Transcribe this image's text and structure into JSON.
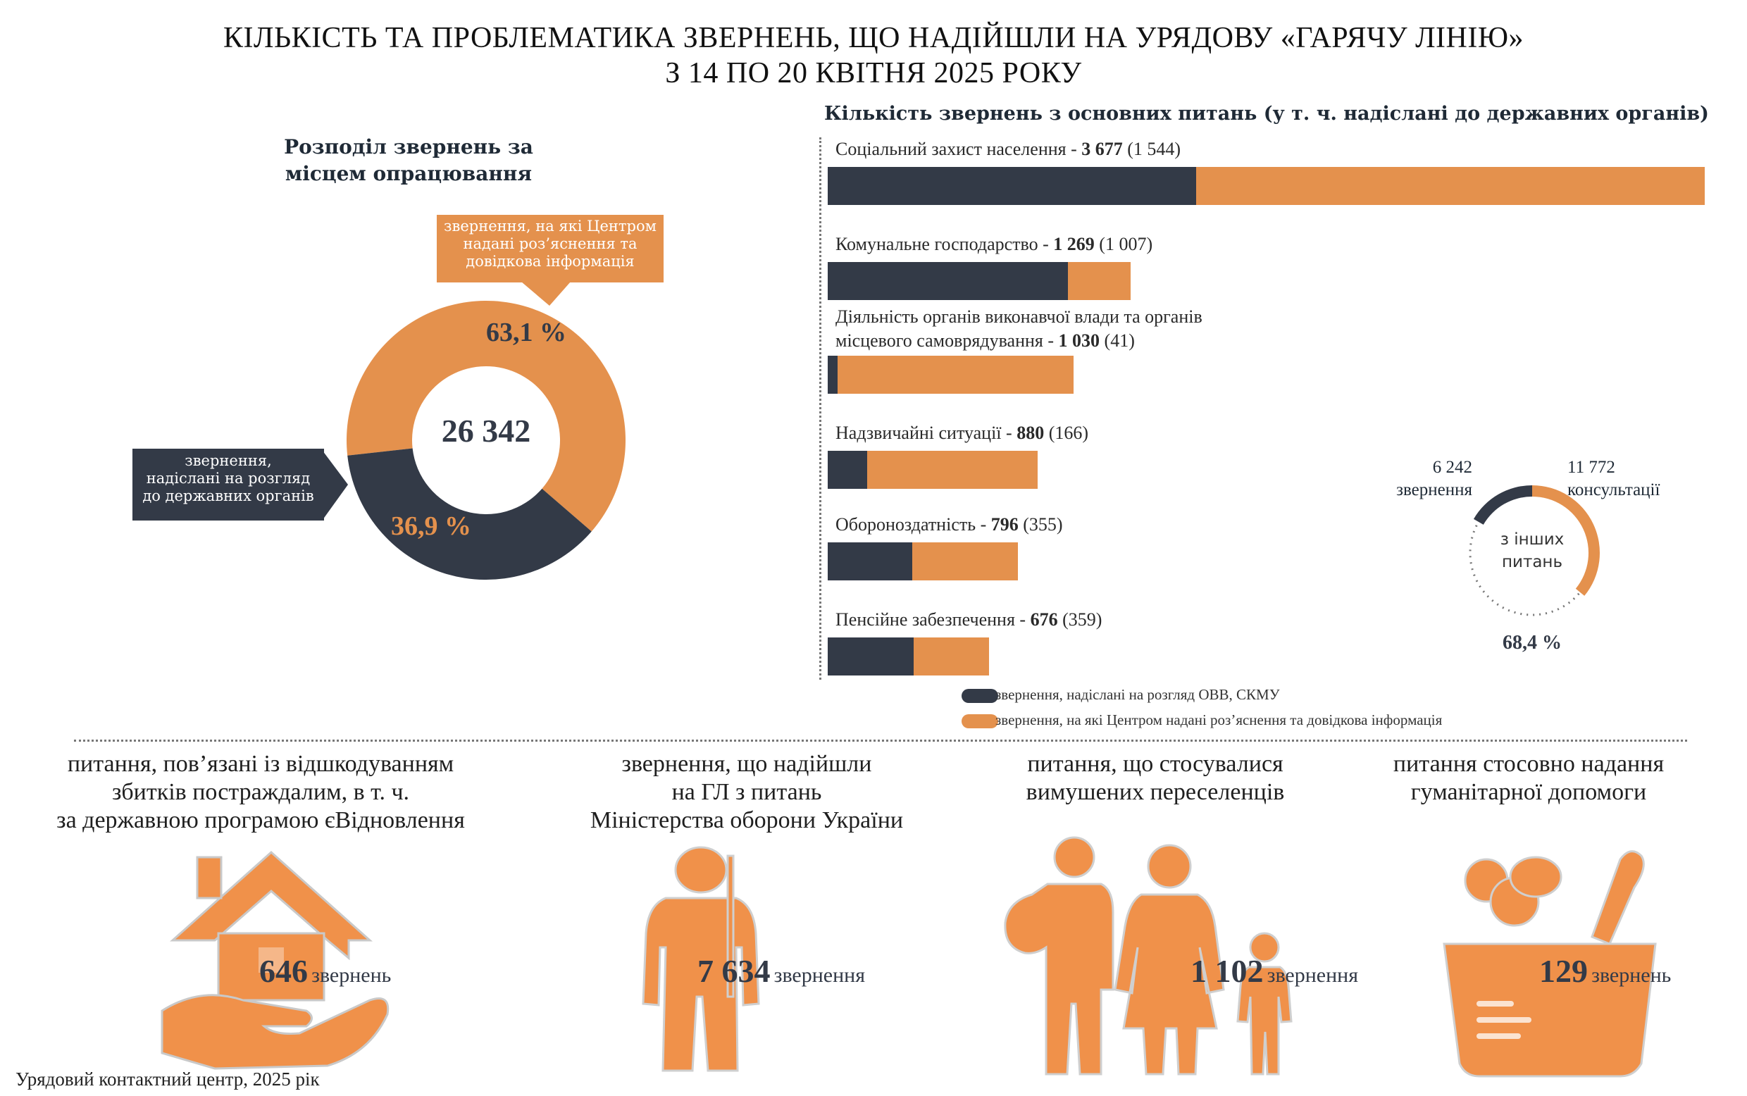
{
  "header": {
    "title_line1": "КІЛЬКІСТЬ ТА ПРОБЛЕМАТИКА ЗВЕРНЕНЬ, ЩО НАДІЙШЛИ НА УРЯДОВУ «ГАРЯЧУ ЛІНІЮ»",
    "title_line2": "З 14 ПО 20 КВІТНЯ 2025 РОКУ"
  },
  "donut": {
    "heading_line1": "Розподіл звернень за",
    "heading_line2": "місцем опрацювання",
    "total": "26 342",
    "orange_pct_label": "63,1 %",
    "dark_pct_label": "36,9 %",
    "orange_callout_line1": "звернення, на які Центром",
    "orange_callout_line2": "надані роз’яснення та",
    "orange_callout_line3": "довідкова інформація",
    "dark_callout_line1": "звернення,",
    "dark_callout_line2": "надіслані на розгляд",
    "dark_callout_line3": "до державних органів"
  },
  "bars": {
    "heading": "Кількість звернень з основних питань (у т. ч. надіслані до державних органів)",
    "legend_dark": "звернення, надіслані на розгляд ОВВ, СКМУ",
    "legend_orange": "звернення, на які Центром надані роз’яснення та довідкова інформація"
  },
  "chart_data": [
    {
      "type": "pie",
      "title": "Розподіл звернень за місцем опрацювання",
      "total": 26342,
      "slices": [
        {
          "label": "звернення, на які Центром надані роз’яснення та довідкова інформація",
          "value": 63.1
        },
        {
          "label": "звернення, надіслані на розгляд до державних органів",
          "value": 36.9
        }
      ]
    },
    {
      "type": "bar",
      "orientation": "horizontal",
      "stacked": true,
      "title": "Кількість звернень з основних питань (у т. ч. надіслані до державних органів)",
      "categories": [
        "Соціальний захист населення",
        "Комунальне господарство",
        "Діяльність органів виконавчої влади та органів місцевого самоврядування",
        "Надзвичайні ситуації",
        "Обороноздатність",
        "Пенсійне забезпечення"
      ],
      "label_prefix": [
        "Соціальний захист населення - ",
        "Комунальне господарство - ",
        "місцевого самоврядування - ",
        "Надзвичайні ситуації - ",
        "Обороноздатність - ",
        "Пенсійне забезпечення - "
      ],
      "label_line1": [
        "",
        "",
        "Діяльність органів виконавчої влади та органів",
        "",
        "",
        ""
      ],
      "totals": [
        3677,
        1269,
        1030,
        880,
        796,
        676
      ],
      "totals_text": [
        "3 677",
        "1 269",
        "1 030",
        "880",
        "796",
        "676"
      ],
      "sent_text": [
        "(1 544)",
        "(1 007)",
        "(41)",
        "(166)",
        "(355)",
        "(359)"
      ],
      "series": [
        {
          "name": "звернення, надіслані на розгляд ОВВ, СКМУ",
          "values": [
            1544,
            1007,
            41,
            166,
            355,
            359
          ],
          "color": "#333a47"
        },
        {
          "name": "звернення, на які Центром надані роз’яснення та довідкова інформація",
          "values": [
            2133,
            262,
            989,
            714,
            441,
            317
          ],
          "color": "#e4914d"
        }
      ],
      "legend": "bottom"
    },
    {
      "type": "pie",
      "title": "з інших питань",
      "center_line1": "з інших",
      "center_line2": "питань",
      "slices": [
        {
          "label": "звернення",
          "value": 6242,
          "value_text": "6 242",
          "color": "#333a47"
        },
        {
          "label": "консультації",
          "value": 11772,
          "value_text": "11 772",
          "color": "#e4914d"
        }
      ],
      "pct_label": "68,4 %"
    }
  ],
  "themes": [
    {
      "title_line1": "питання, пов’язані із відшкодуванням",
      "title_line2": "збитків постраждалим, в т. ч.",
      "title_line3": "за державною програмою єВідновлення",
      "count": "646",
      "word": "звернень",
      "icon": "house-in-hand-icon"
    },
    {
      "title_line1": "звернення, що надійшли",
      "title_line2": "на ГЛ з питань",
      "title_line3": "Міністерства оборони України",
      "count": "7 634",
      "word": "звернення",
      "icon": "soldier-icon"
    },
    {
      "title_line1": "питання, що стосувалися",
      "title_line2": "вимушених переселенців",
      "title_line3": "",
      "count": "1 102",
      "word": "звернення",
      "icon": "refugee-family-icon"
    },
    {
      "title_line1": "питання стосовно надання",
      "title_line2": "гуманітарної допомоги",
      "title_line3": "",
      "count": "129",
      "word": "звернень",
      "icon": "food-basket-icon"
    }
  ],
  "footer": {
    "source": "Урядовий контактний центр, 2025 рік"
  },
  "colors": {
    "dark": "#333a47",
    "orange": "#e4914d"
  }
}
